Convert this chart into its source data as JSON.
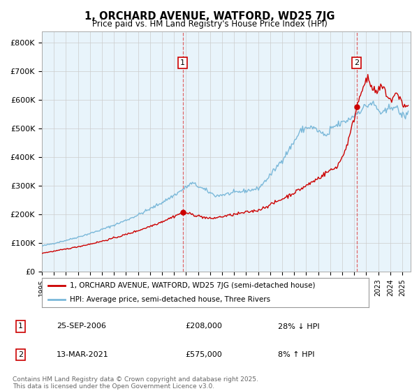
{
  "title": "1, ORCHARD AVENUE, WATFORD, WD25 7JG",
  "subtitle": "Price paid vs. HM Land Registry's House Price Index (HPI)",
  "ylabel_ticks": [
    "£0",
    "£100K",
    "£200K",
    "£300K",
    "£400K",
    "£500K",
    "£600K",
    "£700K",
    "£800K"
  ],
  "ytick_values": [
    0,
    100000,
    200000,
    300000,
    400000,
    500000,
    600000,
    700000,
    800000
  ],
  "ylim": [
    0,
    840000
  ],
  "xlim_start": 1995.0,
  "xlim_end": 2025.7,
  "transaction1_year": 2006.73,
  "transaction1_price": 208000,
  "transaction2_year": 2021.2,
  "transaction2_price": 575000,
  "legend_line1": "1, ORCHARD AVENUE, WATFORD, WD25 7JG (semi-detached house)",
  "legend_line2": "HPI: Average price, semi-detached house, Three Rivers",
  "footer": "Contains HM Land Registry data © Crown copyright and database right 2025.\nThis data is licensed under the Open Government Licence v3.0.",
  "color_red": "#cc0000",
  "color_blue": "#7ab8d9",
  "color_bg": "#e8f4fb",
  "color_dashed": "#dd4444",
  "background_color": "#ffffff",
  "grid_color": "#cccccc"
}
